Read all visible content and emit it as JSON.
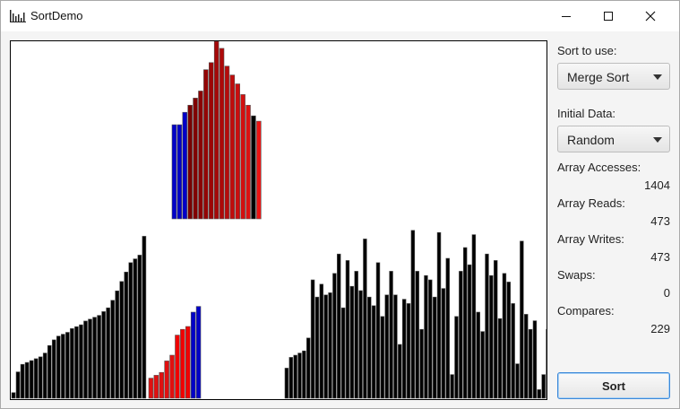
{
  "window": {
    "title": "SortDemo",
    "icon": "bar-chart-icon",
    "controls": {
      "minimize": "minimize-icon",
      "maximize": "maximize-icon",
      "close": "close-icon"
    }
  },
  "panel": {
    "sort_label": "Sort to use:",
    "sort_value": "Merge Sort",
    "initial_label": "Initial Data:",
    "initial_value": "Random",
    "stats": [
      {
        "label": "Array Accesses:",
        "value": "1404"
      },
      {
        "label": "Array Reads:",
        "value": "473"
      },
      {
        "label": "Array Writes:",
        "value": "473"
      },
      {
        "label": "Swaps:",
        "value": "0"
      },
      {
        "label": "Compares:",
        "value": "229"
      }
    ],
    "sort_button": "Sort"
  },
  "colors": {
    "sorted": "#000000",
    "active_blue": "#0000c8",
    "merge_red": "#e01010",
    "dark_red": "#7a0000",
    "bar_stroke": "#555555"
  },
  "chart_data": {
    "type": "bar",
    "max_value": 100,
    "groups": [
      {
        "section": "top-merge",
        "colors": [
          "b",
          "b",
          "b",
          "r",
          "r",
          "r",
          "r",
          "r",
          "r",
          "r",
          "r",
          "r",
          "r",
          "r",
          "r",
          "k",
          "r"
        ],
        "values": [
          53,
          53,
          60,
          64,
          68,
          72,
          84,
          88,
          100,
          96,
          86,
          81,
          76,
          70,
          64,
          58,
          55
        ]
      },
      {
        "section": "bottom-left-sorted",
        "colors": "k",
        "values": [
          3,
          14,
          18,
          19,
          20,
          21,
          22,
          24,
          28,
          31,
          33,
          34,
          35,
          37,
          38,
          39,
          41,
          42,
          43,
          44,
          46,
          48,
          52,
          57,
          62,
          67,
          72,
          74,
          76,
          86
        ]
      },
      {
        "section": "bottom-mid-merge",
        "colors": [
          "r",
          "r",
          "r",
          "r",
          "r",
          "r",
          "r",
          "r",
          "b",
          "b"
        ],
        "values": [
          7,
          8,
          9,
          13,
          15,
          22,
          24,
          25,
          30,
          32
        ]
      },
      {
        "section": "bottom-right-random",
        "colors": "k",
        "values": [
          14,
          19,
          20,
          21,
          22,
          28,
          55,
          47,
          53,
          48,
          49,
          58,
          67,
          42,
          64,
          52,
          59,
          50,
          74,
          47,
          43,
          63,
          38,
          48,
          59,
          48,
          25,
          46,
          44,
          78,
          59,
          32,
          57,
          55,
          47,
          77,
          51,
          65,
          11,
          38,
          59,
          70,
          62,
          76,
          40,
          31,
          67,
          57,
          64,
          37,
          58,
          54,
          44,
          16,
          73,
          39,
          32,
          36,
          4,
          11,
          32
        ]
      }
    ]
  }
}
